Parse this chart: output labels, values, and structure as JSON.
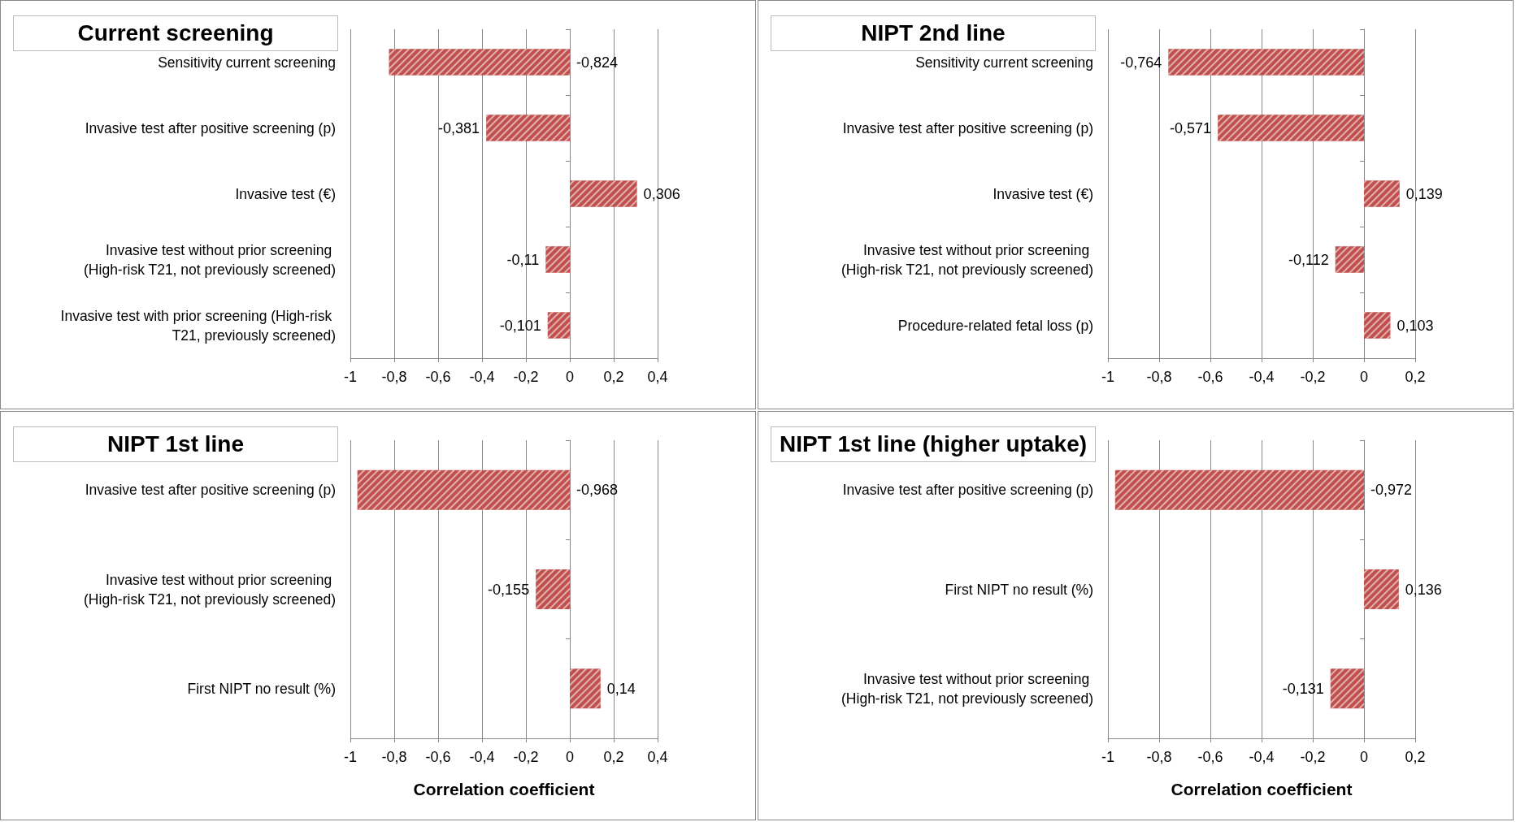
{
  "chart_data": [
    {
      "type": "bar",
      "orientation": "horizontal",
      "title": "Current screening",
      "categories": [
        "Sensitivity current screening",
        "Invasive test after positive screening (p)",
        "Invasive test (€)",
        "Invasive test without prior screening (High-risk T21, not previously screened)",
        "Invasive test with prior screening (High-risk T21, previously screened)"
      ],
      "values": [
        -0.824,
        -0.381,
        0.306,
        -0.11,
        -0.101
      ],
      "value_labels": [
        "-0,824",
        "-0,381",
        "0,306",
        "-0,11",
        "-0,101"
      ],
      "color": "#c0504d",
      "xlim": [
        -1,
        0.4
      ],
      "xticks": [
        {
          "value": -1,
          "label": "-1"
        },
        {
          "value": -0.8,
          "label": "-0,8"
        },
        {
          "value": -0.6,
          "label": "-0,6"
        },
        {
          "value": -0.4,
          "label": "-0,4"
        },
        {
          "value": -0.2,
          "label": "-0,2"
        },
        {
          "value": 0,
          "label": "0"
        },
        {
          "value": 0.2,
          "label": "0,2"
        },
        {
          "value": 0.4,
          "label": "0,4"
        }
      ],
      "grid": "x"
    },
    {
      "type": "bar",
      "orientation": "horizontal",
      "title": "NIPT 2nd line",
      "categories": [
        "Sensitivity current screening",
        "Invasive test after positive screening (p)",
        "Invasive test (€)",
        "Invasive test without prior screening (High-risk T21, not previously screened)",
        "Procedure-related fetal loss (p)"
      ],
      "values": [
        -0.764,
        -0.571,
        0.139,
        -0.112,
        0.103
      ],
      "value_labels": [
        "-0,764",
        "-0,571",
        "0,139",
        "-0,112",
        "0,103"
      ],
      "color": "#c0504d",
      "xlim": [
        -1,
        0.2
      ],
      "xticks": [
        {
          "value": -1,
          "label": "-1"
        },
        {
          "value": -0.8,
          "label": "-0,8"
        },
        {
          "value": -0.6,
          "label": "-0,6"
        },
        {
          "value": -0.4,
          "label": "-0,4"
        },
        {
          "value": -0.2,
          "label": "-0,2"
        },
        {
          "value": 0,
          "label": "0"
        },
        {
          "value": 0.2,
          "label": "0,2"
        }
      ],
      "grid": "x"
    },
    {
      "type": "bar",
      "orientation": "horizontal",
      "title": "NIPT 1st line",
      "xlabel": "Correlation coefficient",
      "categories": [
        "Invasive test after positive screening (p)",
        "Invasive test without prior screening (High-risk T21, not previously screened)",
        "First NIPT no result (%)"
      ],
      "values": [
        -0.968,
        -0.155,
        0.14
      ],
      "value_labels": [
        "-0,968",
        "-0,155",
        "0,14"
      ],
      "color": "#c0504d",
      "xlim": [
        -1,
        0.4
      ],
      "xticks": [
        {
          "value": -1,
          "label": "-1"
        },
        {
          "value": -0.8,
          "label": "-0,8"
        },
        {
          "value": -0.6,
          "label": "-0,6"
        },
        {
          "value": -0.4,
          "label": "-0,4"
        },
        {
          "value": -0.2,
          "label": "-0,2"
        },
        {
          "value": 0,
          "label": "0"
        },
        {
          "value": 0.2,
          "label": "0,2"
        },
        {
          "value": 0.4,
          "label": "0,4"
        }
      ],
      "grid": "x"
    },
    {
      "type": "bar",
      "orientation": "horizontal",
      "title": "NIPT 1st line (higher uptake)",
      "xlabel": "Correlation coefficient",
      "categories": [
        "Invasive test after positive screening (p)",
        "First NIPT no result (%)",
        "Invasive test without prior screening (High-risk T21, not previously screened)"
      ],
      "values": [
        -0.972,
        0.136,
        -0.131
      ],
      "value_labels": [
        "-0,972",
        "0,136",
        "-0,131"
      ],
      "color": "#c0504d",
      "xlim": [
        -1,
        0.2
      ],
      "xticks": [
        {
          "value": -1,
          "label": "-1"
        },
        {
          "value": -0.8,
          "label": "-0,8"
        },
        {
          "value": -0.6,
          "label": "-0,6"
        },
        {
          "value": -0.4,
          "label": "-0,4"
        },
        {
          "value": -0.2,
          "label": "-0,2"
        },
        {
          "value": 0,
          "label": "0"
        },
        {
          "value": 0.2,
          "label": "0,2"
        }
      ],
      "grid": "x"
    }
  ]
}
